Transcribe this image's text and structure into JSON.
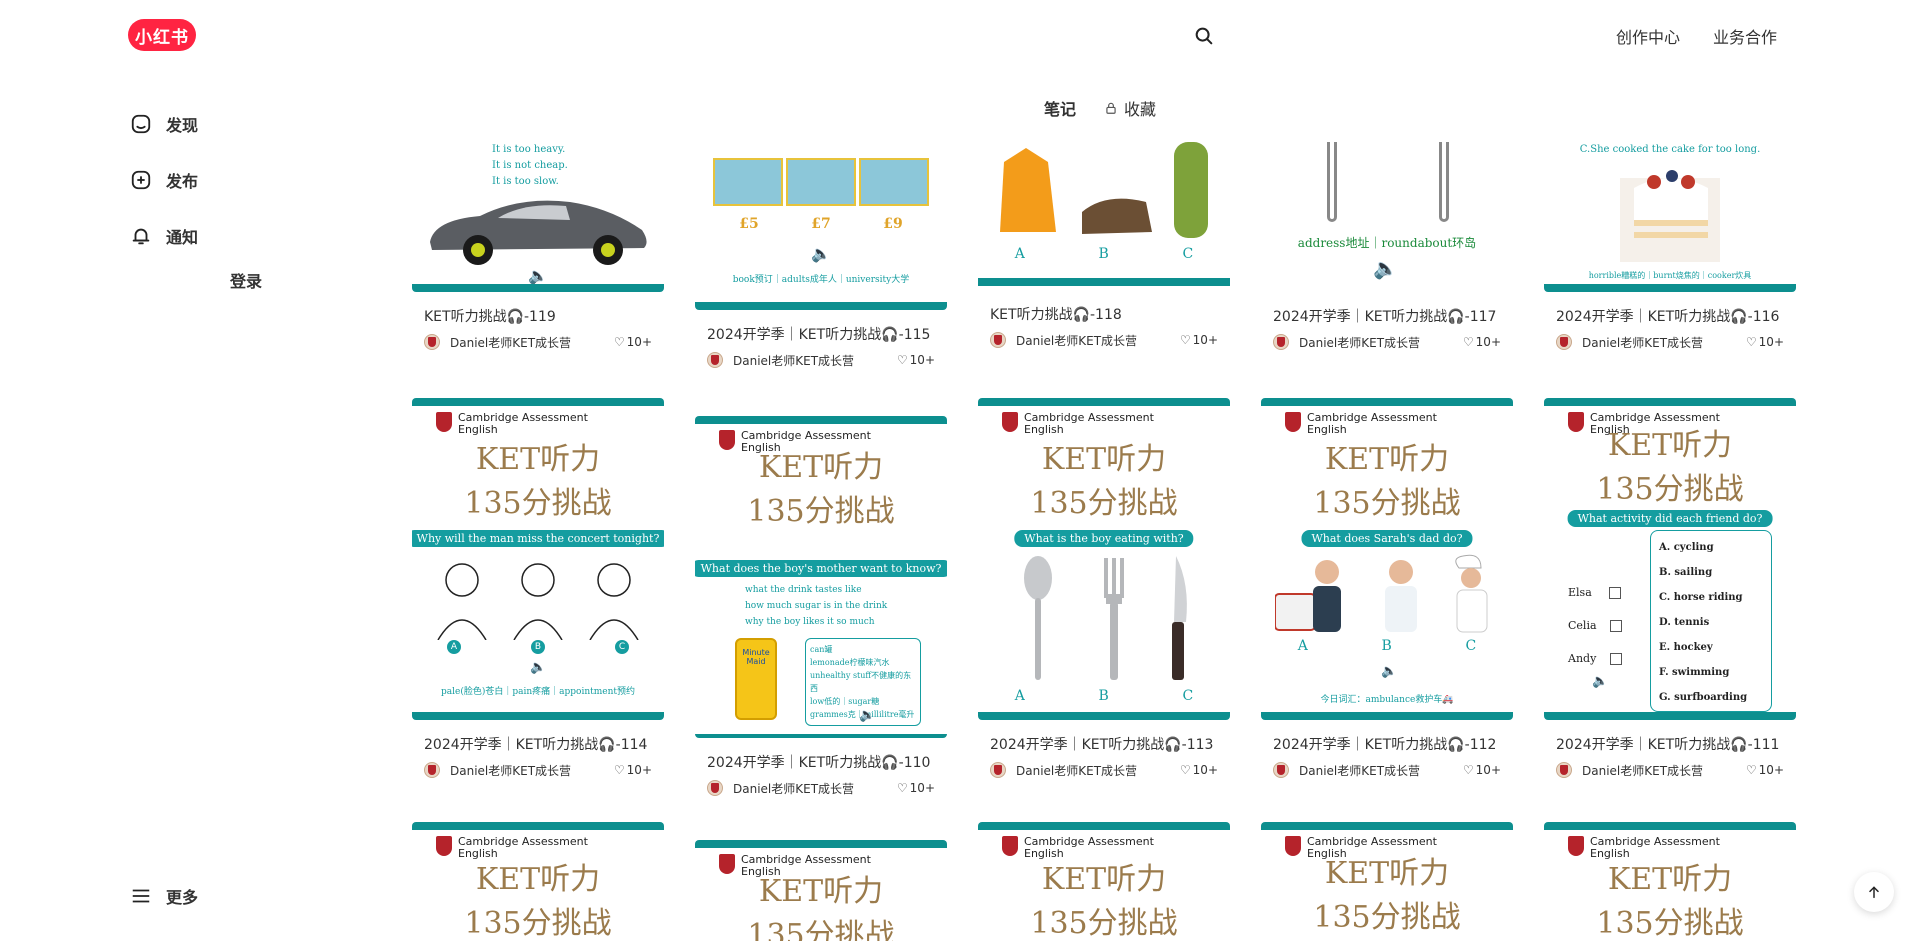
{
  "app": {
    "logo_text": "小红书"
  },
  "header": {
    "links": [
      "创作中心",
      "业务合作"
    ]
  },
  "sidebar": {
    "items": [
      {
        "label": "发现",
        "icon": "home-icon"
      },
      {
        "label": "发布",
        "icon": "plus-square-icon"
      },
      {
        "label": "通知",
        "icon": "bell-icon"
      }
    ],
    "login": "登录",
    "more": "更多"
  },
  "tabs": [
    {
      "label": "笔记",
      "active": true
    },
    {
      "label": "收藏",
      "locked": true
    }
  ],
  "notes": [
    {
      "title": "KET听力挑战🎧-119",
      "author": "Daniel老师KET成长营",
      "likes": "10+",
      "caption": ""
    },
    {
      "title": "2024开学季｜KET听力挑战🎧-115",
      "author": "Daniel老师KET成长营",
      "likes": "10+",
      "caption": "book预订｜adults成年人｜university大学"
    },
    {
      "title": "KET听力挑战🎧-118",
      "author": "Daniel老师KET成长营",
      "likes": "10+",
      "caption": ""
    },
    {
      "title": "2024开学季｜KET听力挑战🎧-117",
      "author": "Daniel老师KET成长营",
      "likes": "10+",
      "caption": "address地址｜roundabout环岛"
    },
    {
      "title": "2024开学季｜KET听力挑战🎧-116",
      "author": "Daniel老师KET成长营",
      "likes": "10+",
      "caption": "horrible糟糕的｜burnt烧焦的｜cooker炊具"
    },
    {
      "title": "2024开学季｜KET听力挑战🎧-114",
      "author": "Daniel老师KET成长营",
      "likes": "10+",
      "question": "Why will the man miss the concert tonight?",
      "caption": "pale(脸色)苍白｜pain疼痛｜appointment预约"
    },
    {
      "title": "2024开学季｜KET听力挑战🎧-110",
      "author": "Daniel老师KET成长营",
      "likes": "10+",
      "question": "What does the boy's mother want to know?",
      "caption": ""
    },
    {
      "title": "2024开学季｜KET听力挑战🎧-113",
      "author": "Daniel老师KET成长营",
      "likes": "10+",
      "question": "What is the boy eating with?",
      "caption": ""
    },
    {
      "title": "2024开学季｜KET听力挑战🎧-112",
      "author": "Daniel老师KET成长营",
      "likes": "10+",
      "question": "What does Sarah's dad do?",
      "caption": "今日词汇：ambulance救护车🚑"
    },
    {
      "title": "2024开学季｜KET听力挑战🎧-111",
      "author": "Daniel老师KET成长营",
      "likes": "10+",
      "question": "What activity did each friend do?",
      "caption": ""
    }
  ],
  "thumb_text": {
    "brand": "Cambridge Assessment",
    "brand_sub": "English",
    "line1": "KET听力",
    "line2": "135分挑战",
    "opts_119": [
      "It is too heavy.",
      "It is not cheap.",
      "It is too slow."
    ],
    "money_115": [
      "£5",
      "£7",
      "£9"
    ],
    "abc": [
      "A",
      "B",
      "C"
    ],
    "cake_116": "C.She cooked the cake for too long.",
    "opts_110": [
      "what the drink tastes like",
      "how much sugar is in the drink",
      "why the boy likes it so much"
    ],
    "vocab_110": [
      "can罐",
      "lemonade柠檬味汽水",
      "unhealthy stuff不健康的东西",
      "low低的｜sugar糖",
      "grammes克｜millilitre毫升"
    ],
    "friends_111": [
      "Elsa",
      "Celia",
      "Andy"
    ],
    "acts_111": [
      "A. cycling",
      "B. sailing",
      "C. horse riding",
      "D. tennis",
      "E. hockey",
      "F. swimming",
      "G. surfboarding"
    ],
    "juice": "Minute Maid"
  },
  "colors": {
    "brand_red": "#ff2442",
    "teal": "#159da0",
    "gold": "#9b7b4c"
  }
}
